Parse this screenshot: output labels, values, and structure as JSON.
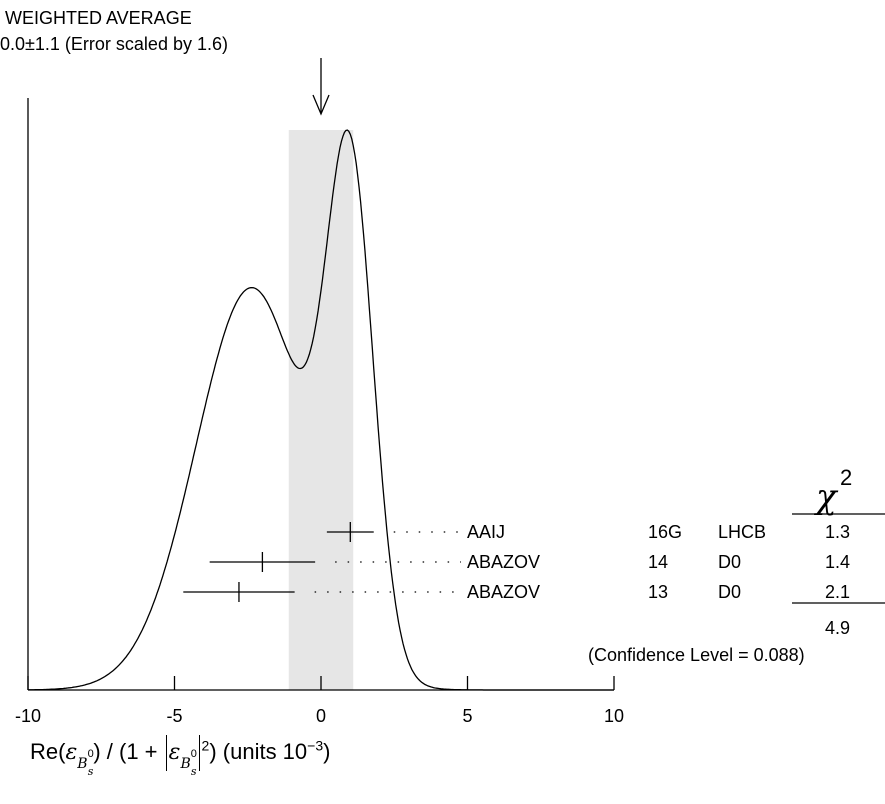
{
  "header": {
    "title": "WEIGHTED AVERAGE",
    "subtitle": "0.0±1.1 (Error scaled by 1.6)"
  },
  "chart_data": {
    "type": "ideogram",
    "weighted_average": 0.0,
    "error": 1.1,
    "error_scale": 1.6,
    "xlim": [
      -10,
      10
    ],
    "xticks": [
      -10,
      -5,
      0,
      5,
      10
    ],
    "xtick_labels": [
      "-10",
      "-5",
      "0",
      "5",
      "10"
    ],
    "xlabel_parts": {
      "prefix": "Re(",
      "epsilon": "ε",
      "sub_b": "B",
      "sup_zero": "0",
      "subsub_s": "s",
      "middle": ") / (1 + ",
      "power": "2",
      "suffix": ") (units 10",
      "exponent": "−3",
      "close": ")"
    },
    "measurements": [
      {
        "author": "AAIJ",
        "year": "16G",
        "experiment": "LHCB",
        "value": 1.0,
        "error_low": 0.8,
        "error_high": 0.8,
        "chi2": "1.3"
      },
      {
        "author": "ABAZOV",
        "year": "14",
        "experiment": "D0",
        "value": -2.0,
        "error_low": 1.8,
        "error_high": 1.8,
        "chi2": "1.4"
      },
      {
        "author": "ABAZOV",
        "year": "13",
        "experiment": "D0",
        "value": -2.8,
        "error_low": 1.9,
        "error_high": 1.9,
        "chi2": "2.1"
      }
    ],
    "chi2_header": "χ",
    "chi2_power": "2",
    "chi2_total": "4.9",
    "confidence_level": "(Confidence Level = 0.088)"
  }
}
